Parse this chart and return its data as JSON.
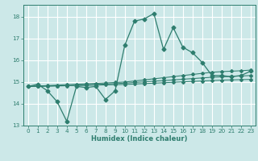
{
  "xlabel": "Humidex (Indice chaleur)",
  "bg_color": "#cce8e8",
  "grid_color": "#ffffff",
  "line_color": "#2e7d6e",
  "xlim": [
    -0.5,
    23.5
  ],
  "ylim": [
    13.0,
    18.55
  ],
  "yticks": [
    13,
    14,
    15,
    16,
    17,
    18
  ],
  "xticks": [
    0,
    1,
    2,
    3,
    4,
    5,
    6,
    7,
    8,
    9,
    10,
    11,
    12,
    13,
    14,
    15,
    16,
    17,
    18,
    19,
    20,
    21,
    22,
    23
  ],
  "series_main": [
    14.8,
    14.9,
    14.6,
    14.1,
    13.2,
    14.8,
    14.75,
    14.8,
    14.2,
    14.6,
    16.7,
    17.8,
    17.9,
    18.15,
    16.5,
    17.5,
    16.6,
    16.35,
    15.9,
    15.3,
    15.3,
    15.25,
    15.3,
    15.5
  ],
  "series_s1": [
    14.8,
    14.82,
    14.84,
    14.86,
    14.88,
    14.9,
    14.92,
    14.94,
    14.96,
    14.98,
    15.0,
    15.05,
    15.1,
    15.15,
    15.2,
    15.25,
    15.3,
    15.35,
    15.4,
    15.45,
    15.48,
    15.5,
    15.52,
    15.55
  ],
  "series_s2": [
    14.8,
    14.81,
    14.82,
    14.83,
    14.84,
    14.85,
    14.87,
    14.89,
    14.91,
    14.93,
    14.95,
    14.98,
    15.01,
    15.04,
    15.07,
    15.1,
    15.13,
    15.16,
    15.19,
    15.22,
    15.24,
    15.26,
    15.28,
    15.3
  ],
  "series_s3": [
    14.8,
    14.8,
    14.81,
    14.82,
    14.83,
    14.84,
    14.85,
    14.86,
    14.87,
    14.88,
    14.89,
    14.91,
    14.93,
    14.95,
    14.97,
    14.99,
    15.01,
    15.03,
    15.05,
    15.07,
    15.09,
    15.1,
    15.11,
    15.12
  ],
  "xlabel_fontsize": 6.0,
  "tick_fontsize": 5.2
}
